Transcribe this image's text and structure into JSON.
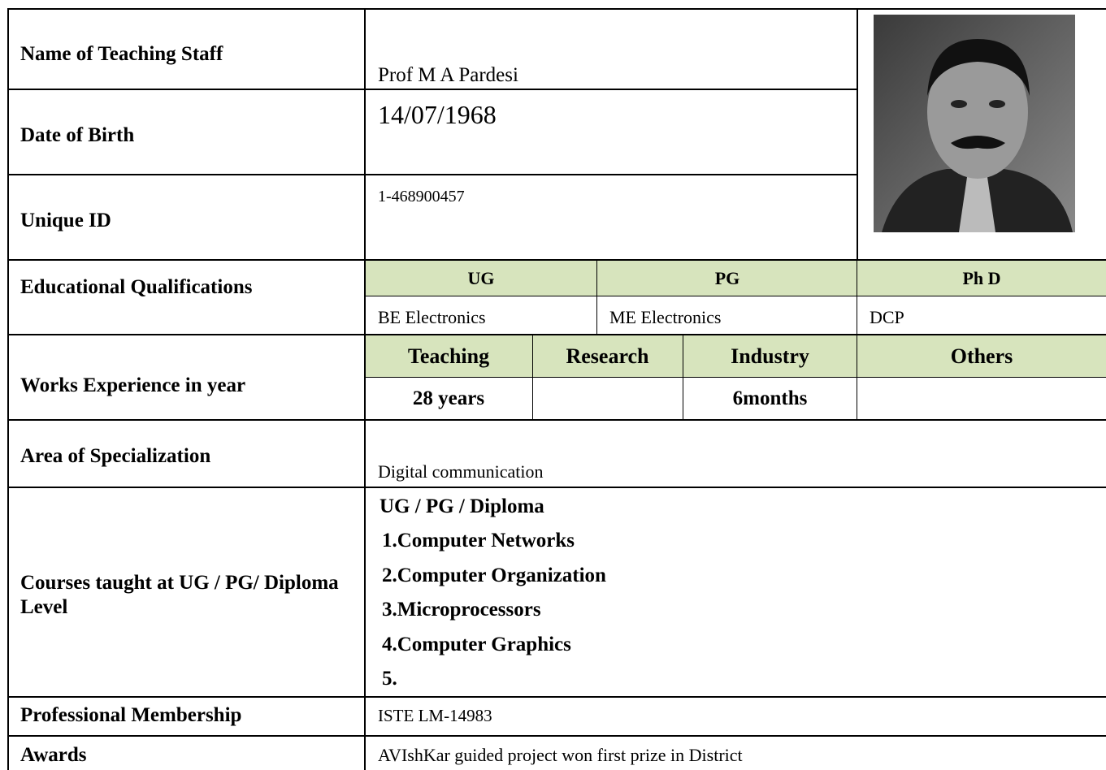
{
  "name": {
    "label": "Name of Teaching Staff",
    "value": "Prof  M A Pardesi"
  },
  "dob": {
    "label": "Date of Birth",
    "value": "14/07/1968"
  },
  "unique_id": {
    "label": "Unique ID",
    "value": "1-468900457"
  },
  "education": {
    "label": "Educational Qualifications",
    "headers": [
      "UG",
      "PG",
      "Ph D"
    ],
    "values": [
      "BE Electronics",
      "ME Electronics",
      "DCP"
    ]
  },
  "experience": {
    "label": "Works Experience in year",
    "headers": [
      "Teaching",
      "Research",
      "Industry",
      "Others"
    ],
    "values": [
      "28 years",
      null,
      "6months",
      null
    ]
  },
  "specialization": {
    "label": "Area of Specialization",
    "value": "Digital communication"
  },
  "courses": {
    "label": "Courses taught at UG / PG/ Diploma Level",
    "heading": "UG / PG / Diploma",
    "items": [
      "1.Computer Networks",
      "2.Computer Organization",
      "3.Microprocessors",
      "4.Computer Graphics",
      "5."
    ]
  },
  "membership": {
    "label": "Professional Membership",
    "value": "ISTE LM-14983"
  },
  "awards": {
    "label": "Awards",
    "value": "AVIshKar guided project won first prize in District"
  }
}
